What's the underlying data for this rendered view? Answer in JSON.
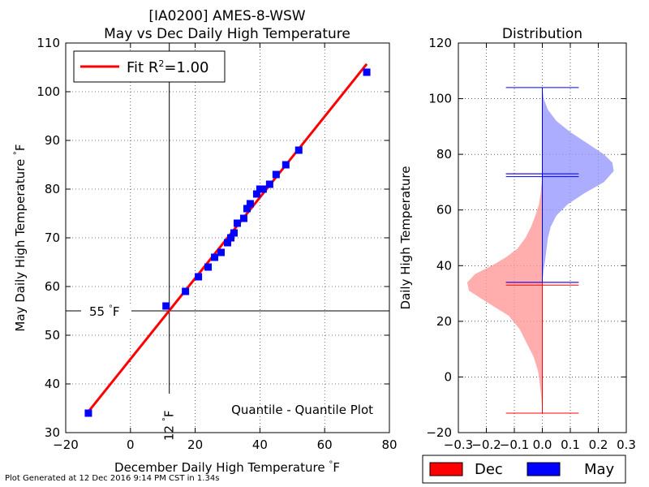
{
  "footer": "Plot Generated at 12 Dec 2016 9:14 PM CST in 1.34s",
  "chart_data": [
    {
      "type": "scatter",
      "title": "[IA0200] AMES-8-WSW",
      "subtitle": "May vs Dec Daily High Temperature",
      "xlabel": "December Daily High Temperature",
      "ylabel": "May Daily High Temperature",
      "xunit": "°F",
      "yunit": "°F",
      "xlim": [
        -20,
        80
      ],
      "ylim": [
        30,
        110
      ],
      "xticks": [
        -20,
        0,
        20,
        40,
        60,
        80
      ],
      "yticks": [
        30,
        40,
        50,
        60,
        70,
        80,
        90,
        100,
        110
      ],
      "grid": true,
      "legend_position": "top-left",
      "fit": {
        "label": "Fit",
        "r2": "1.00",
        "color": "#ff0000",
        "x": [
          -13,
          73
        ],
        "y": [
          34.3,
          105.7
        ]
      },
      "points": {
        "color": "#0000ff",
        "x": [
          -13,
          11,
          17,
          21,
          24,
          26,
          28,
          30,
          31,
          32,
          33,
          35,
          36,
          37,
          39,
          40,
          41,
          43,
          45,
          48,
          52,
          73
        ],
        "y": [
          34,
          56,
          59,
          62,
          64,
          66,
          67,
          69,
          70,
          71,
          73,
          74,
          76,
          77,
          79,
          80,
          80,
          81,
          83,
          85,
          88,
          104
        ]
      },
      "reference_lines": {
        "y": 55,
        "y_label": "55",
        "x": 12,
        "x_label": "12"
      },
      "annotation": "Quantile - Quantile Plot"
    },
    {
      "type": "area",
      "title": "Distribution",
      "ylabel": "Daily High Temperature",
      "xlim": [
        -0.3,
        0.3
      ],
      "ylim": [
        -20,
        120
      ],
      "xticks": [
        -0.3,
        -0.2,
        -0.1,
        0.0,
        0.1,
        0.2,
        0.3
      ],
      "yticks": [
        -20,
        0,
        20,
        40,
        60,
        80,
        100,
        120
      ],
      "grid": true,
      "legend_position": "bottom",
      "series": [
        {
          "name": "Dec",
          "color": "#ff0000",
          "fill": "#ff9999",
          "side": "left",
          "min": -13,
          "max": 73,
          "mean": 33,
          "median": 34,
          "density": [
            [
              -13,
              0.0
            ],
            [
              -8,
              0.003
            ],
            [
              -3,
              0.008
            ],
            [
              2,
              0.015
            ],
            [
              7,
              0.03
            ],
            [
              12,
              0.055
            ],
            [
              17,
              0.08
            ],
            [
              22,
              0.12
            ],
            [
              27,
              0.2
            ],
            [
              31,
              0.262
            ],
            [
              34,
              0.268
            ],
            [
              37,
              0.24
            ],
            [
              40,
              0.18
            ],
            [
              43,
              0.13
            ],
            [
              46,
              0.09
            ],
            [
              50,
              0.06
            ],
            [
              54,
              0.04
            ],
            [
              58,
              0.025
            ],
            [
              62,
              0.012
            ],
            [
              66,
              0.006
            ],
            [
              70,
              0.002
            ],
            [
              73,
              0.0
            ]
          ]
        },
        {
          "name": "May",
          "color": "#0000ff",
          "fill": "#9999ff",
          "side": "right",
          "min": 34,
          "max": 104,
          "mean": 73,
          "median": 72,
          "density": [
            [
              34,
              0.0
            ],
            [
              38,
              0.004
            ],
            [
              42,
              0.01
            ],
            [
              46,
              0.015
            ],
            [
              50,
              0.02
            ],
            [
              54,
              0.03
            ],
            [
              58,
              0.05
            ],
            [
              62,
              0.09
            ],
            [
              66,
              0.15
            ],
            [
              70,
              0.22
            ],
            [
              74,
              0.255
            ],
            [
              77,
              0.25
            ],
            [
              80,
              0.22
            ],
            [
              84,
              0.16
            ],
            [
              88,
              0.1
            ],
            [
              92,
              0.05
            ],
            [
              96,
              0.02
            ],
            [
              100,
              0.005
            ],
            [
              104,
              0.0
            ]
          ]
        }
      ]
    }
  ]
}
